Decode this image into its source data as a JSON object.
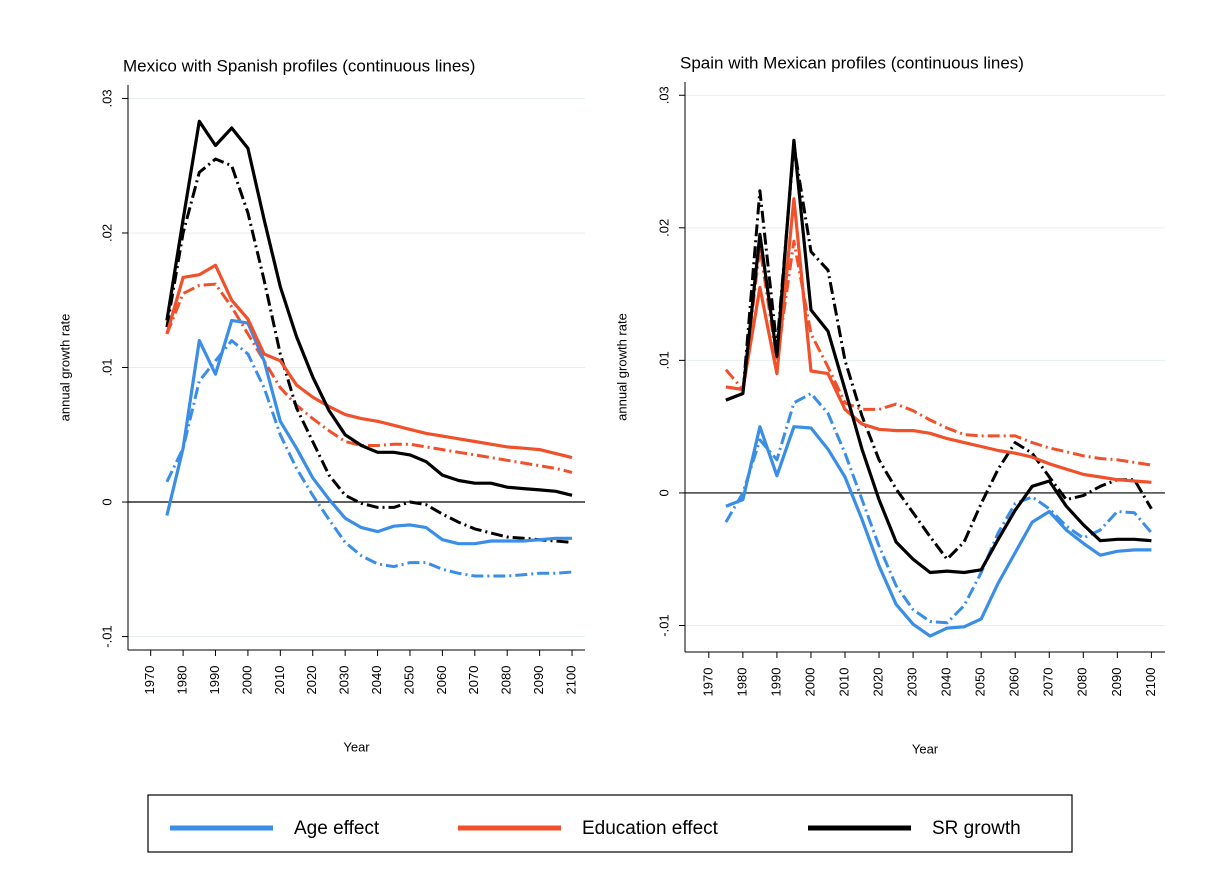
{
  "chart_data": [
    {
      "type": "line",
      "title": "Mexico with Spanish profiles (continuous lines)",
      "xlabel": "Year",
      "ylabel": "annual growth rate",
      "x": [
        1975,
        1980,
        1985,
        1990,
        1995,
        2000,
        2005,
        2010,
        2015,
        2020,
        2025,
        2030,
        2035,
        2040,
        2045,
        2050,
        2055,
        2060,
        2065,
        2070,
        2075,
        2080,
        2085,
        2090,
        2095,
        2100
      ],
      "xlim": [
        1963,
        2104
      ],
      "xticks": [
        1970,
        1980,
        1990,
        2000,
        2010,
        2020,
        2030,
        2040,
        2050,
        2060,
        2070,
        2080,
        2090,
        2100
      ],
      "ylim": [
        -0.011,
        0.031
      ],
      "yticks": [
        {
          "value": -0.01,
          "label": "-.01"
        },
        0,
        {
          "value": 0.01,
          "label": ".01"
        },
        {
          "value": 0.02,
          "label": ".02"
        },
        {
          "value": 0.03,
          "label": ".03"
        }
      ],
      "grid": true,
      "hline": 0,
      "series": [
        {
          "color": "#3a8ee6",
          "style": "dashdot",
          "values": [
            0.0015,
            0.004,
            0.009,
            0.0105,
            0.012,
            0.011,
            0.0085,
            0.005,
            0.0025,
            0.0005,
            -0.0013,
            -0.003,
            -0.004,
            -0.0046,
            -0.0048,
            -0.0045,
            -0.0045,
            -0.005,
            -0.0053,
            -0.0055,
            -0.0055,
            -0.0055,
            -0.0054,
            -0.0053,
            -0.0053,
            -0.0052
          ]
        },
        {
          "color": "#f0502a",
          "style": "dashdot",
          "values": [
            0.0125,
            0.0155,
            0.0161,
            0.0162,
            0.0145,
            0.0125,
            0.0105,
            0.0085,
            0.0072,
            0.0062,
            0.0053,
            0.0045,
            0.0042,
            0.0042,
            0.0043,
            0.0043,
            0.0041,
            0.0039,
            0.0037,
            0.0035,
            0.0033,
            0.0031,
            0.0029,
            0.0027,
            0.0025,
            0.0022
          ]
        },
        {
          "color": "#000000",
          "style": "dashdot",
          "values": [
            0.013,
            0.02,
            0.0245,
            0.0255,
            0.025,
            0.0215,
            0.0165,
            0.011,
            0.007,
            0.0045,
            0.002,
            0.0005,
            -0.0001,
            -0.0004,
            -0.0004,
            0.0,
            -0.0002,
            -0.0009,
            -0.0015,
            -0.002,
            -0.0023,
            -0.0026,
            -0.0027,
            -0.0028,
            -0.0029,
            -0.003
          ]
        },
        {
          "color": "#3a8ee6",
          "style": "solid",
          "values": [
            -0.001,
            0.004,
            0.012,
            0.0095,
            0.0135,
            0.0133,
            0.0105,
            0.006,
            0.004,
            0.0018,
            0.0002,
            -0.0012,
            -0.0019,
            -0.0022,
            -0.0018,
            -0.0017,
            -0.0019,
            -0.0028,
            -0.0031,
            -0.0031,
            -0.0029,
            -0.0029,
            -0.0029,
            -0.0028,
            -0.0027,
            -0.0027
          ]
        },
        {
          "color": "#f0502a",
          "style": "solid",
          "values": [
            0.0125,
            0.0167,
            0.0169,
            0.0176,
            0.015,
            0.0136,
            0.011,
            0.0105,
            0.0087,
            0.0078,
            0.0071,
            0.0065,
            0.0062,
            0.006,
            0.0057,
            0.0054,
            0.0051,
            0.0049,
            0.0047,
            0.0045,
            0.0043,
            0.0041,
            0.004,
            0.0039,
            0.0036,
            0.0033
          ]
        },
        {
          "color": "#000000",
          "style": "solid",
          "values": [
            0.0135,
            0.021,
            0.0283,
            0.0265,
            0.0278,
            0.0263,
            0.021,
            0.016,
            0.0123,
            0.0093,
            0.0068,
            0.005,
            0.0042,
            0.0037,
            0.0037,
            0.0035,
            0.003,
            0.002,
            0.0016,
            0.0014,
            0.0014,
            0.0011,
            0.001,
            0.0009,
            0.0008,
            0.0005
          ]
        }
      ]
    },
    {
      "type": "line",
      "title": "Spain with Mexican profiles (continuous lines)",
      "xlabel": "Year",
      "ylabel": "annual growth rate",
      "x": [
        1975,
        1980,
        1985,
        1990,
        1995,
        2000,
        2005,
        2010,
        2015,
        2020,
        2025,
        2030,
        2035,
        2040,
        2045,
        2050,
        2055,
        2060,
        2065,
        2070,
        2075,
        2080,
        2085,
        2090,
        2095,
        2100
      ],
      "xlim": [
        1963,
        2104
      ],
      "xticks": [
        1970,
        1980,
        1990,
        2000,
        2010,
        2020,
        2030,
        2040,
        2050,
        2060,
        2070,
        2080,
        2090,
        2100
      ],
      "ylim": [
        -0.012,
        0.031
      ],
      "yticks": [
        {
          "value": -0.01,
          "label": "-.01"
        },
        0,
        {
          "value": 0.01,
          "label": ".01"
        },
        {
          "value": 0.02,
          "label": ".02"
        },
        {
          "value": 0.03,
          "label": ".03"
        }
      ],
      "grid": true,
      "hline": 0,
      "series": [
        {
          "color": "#3a8ee6",
          "style": "dashdot",
          "values": [
            -0.0022,
            0.0,
            0.004,
            0.0025,
            0.0068,
            0.0075,
            0.006,
            0.003,
            -0.0005,
            -0.004,
            -0.007,
            -0.0088,
            -0.0097,
            -0.0098,
            -0.0085,
            -0.006,
            -0.003,
            -0.0008,
            -0.0003,
            -0.0012,
            -0.0025,
            -0.0034,
            -0.0028,
            -0.0014,
            -0.0015,
            -0.003
          ]
        },
        {
          "color": "#f0502a",
          "style": "dashdot",
          "values": [
            0.0093,
            0.0078,
            0.0185,
            0.01,
            0.019,
            0.012,
            0.0095,
            0.0068,
            0.0063,
            0.0063,
            0.0067,
            0.0062,
            0.0055,
            0.0049,
            0.0044,
            0.0043,
            0.0043,
            0.0043,
            0.0038,
            0.0034,
            0.0031,
            0.0028,
            0.0026,
            0.0025,
            0.0023,
            0.0021
          ]
        },
        {
          "color": "#000000",
          "style": "dashdot",
          "values": [
            0.007,
            0.0075,
            0.0228,
            0.011,
            0.0262,
            0.0182,
            0.0168,
            0.01,
            0.0058,
            0.0025,
            0.0003,
            -0.0015,
            -0.0033,
            -0.005,
            -0.0037,
            -0.0008,
            0.0018,
            0.0038,
            0.003,
            0.0012,
            -0.0005,
            -0.0002,
            0.0005,
            0.001,
            0.001,
            -0.0012
          ]
        },
        {
          "color": "#3a8ee6",
          "style": "solid",
          "values": [
            -0.001,
            -0.0005,
            0.005,
            0.0013,
            0.005,
            0.0049,
            0.0033,
            0.0012,
            -0.002,
            -0.0055,
            -0.0084,
            -0.0099,
            -0.0108,
            -0.0102,
            -0.0101,
            -0.0095,
            -0.0068,
            -0.0045,
            -0.0022,
            -0.0014,
            -0.0028,
            -0.0038,
            -0.0047,
            -0.0044,
            -0.0043,
            -0.0043
          ]
        },
        {
          "color": "#f0502a",
          "style": "solid",
          "values": [
            0.008,
            0.0078,
            0.0155,
            0.009,
            0.0222,
            0.0092,
            0.009,
            0.0063,
            0.0052,
            0.0048,
            0.0047,
            0.0047,
            0.0045,
            0.0041,
            0.0038,
            0.0035,
            0.0032,
            0.003,
            0.0027,
            0.0022,
            0.0018,
            0.0014,
            0.0012,
            0.001,
            0.0009,
            0.0008
          ]
        },
        {
          "color": "#000000",
          "style": "solid",
          "values": [
            0.007,
            0.0075,
            0.0195,
            0.0103,
            0.0266,
            0.0138,
            0.0122,
            0.0078,
            0.0033,
            -0.0005,
            -0.0037,
            -0.005,
            -0.006,
            -0.0059,
            -0.006,
            -0.0058,
            -0.0035,
            -0.0013,
            0.0005,
            0.0009,
            -0.001,
            -0.0024,
            -0.0036,
            -0.0035,
            -0.0035,
            -0.0036
          ]
        }
      ]
    }
  ],
  "legend": [
    {
      "name": "Age effect",
      "color": "#3a8ee6"
    },
    {
      "name": "Education effect",
      "color": "#f0502a"
    },
    {
      "name": "SR growth",
      "color": "#000000"
    }
  ]
}
